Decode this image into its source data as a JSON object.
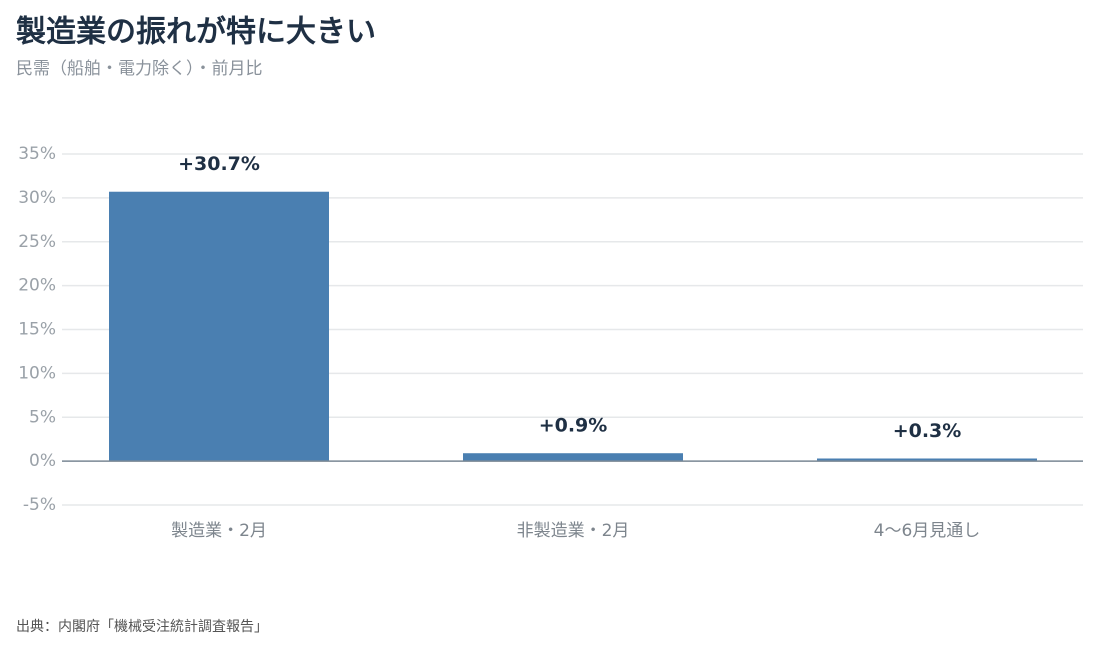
{
  "chart_data": {
    "type": "bar",
    "title": "製造業の振れが特に大きい",
    "subtitle": "民需（船舶・電力除く）・前月比",
    "source": "出典：内閣府「機械受注統計調査報告」",
    "categories": [
      "製造業・2月",
      "非製造業・2月",
      "4～6月見通し"
    ],
    "values": [
      30.7,
      0.9,
      0.3
    ],
    "value_labels": [
      "+30.7%",
      "+0.9%",
      "+0.3%"
    ],
    "color": "#4a7fb1",
    "ylim": [
      -5,
      35
    ],
    "yticks": [
      {
        "value": -5,
        "label": "-5%"
      },
      {
        "value": 0,
        "label": "0%"
      },
      {
        "value": 5,
        "label": "5%"
      },
      {
        "value": 10,
        "label": "10%"
      },
      {
        "value": 15,
        "label": "15%"
      },
      {
        "value": 20,
        "label": "20%"
      },
      {
        "value": 25,
        "label": "25%"
      },
      {
        "value": 30,
        "label": "30%"
      },
      {
        "value": 35,
        "label": "35%"
      }
    ],
    "grid": true
  }
}
